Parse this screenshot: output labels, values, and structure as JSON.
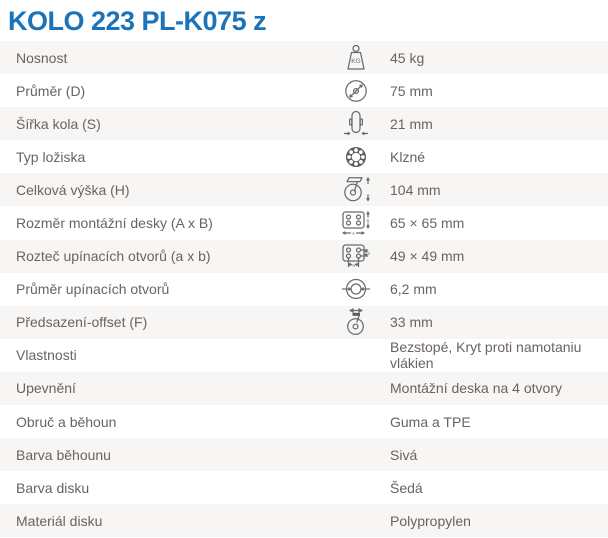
{
  "page": {
    "title": "KOLO 223 PL-K075 z"
  },
  "colors": {
    "title_blue": "#1b73b9",
    "row_shaded": "#f7f6f5",
    "row_white": "#ffffff",
    "text_gray": "#6a635e",
    "icon_gray": "#6b6b6b"
  },
  "table": {
    "rows": [
      {
        "label": "Nosnost",
        "icon": "weight-kg-icon",
        "value": "45 kg"
      },
      {
        "label": "Průměr (D)",
        "icon": "diameter-icon",
        "value": "75 mm"
      },
      {
        "label": "Šířka kola (S)",
        "icon": "wheel-width-icon",
        "value": "21 mm"
      },
      {
        "label": "Typ ložiska",
        "icon": "bearing-icon",
        "value": "Klzné"
      },
      {
        "label": "Celková výška (H)",
        "icon": "caster-height-icon",
        "value": "104 mm"
      },
      {
        "label": "Rozměr montážní desky (A x B)",
        "icon": "mounting-plate-icon",
        "value": "65 × 65 mm"
      },
      {
        "label": "Rozteč upínacích otvorů (a x b)",
        "icon": "hole-spacing-icon",
        "value": "49 × 49 mm"
      },
      {
        "label": "Průměr upínacích otvorů",
        "icon": "hole-diameter-icon",
        "value": "6,2 mm"
      },
      {
        "label": "Předsazení-offset (F)",
        "icon": "caster-offset-icon",
        "value": "33 mm"
      },
      {
        "label": "Vlastnosti",
        "icon": null,
        "value": "Bezstopé, Kryt proti namotaniu vlákien"
      },
      {
        "label": "Upevnění",
        "icon": null,
        "value": "Montážní deska na 4 otvory"
      },
      {
        "label": "Obruč a běhoun",
        "icon": null,
        "value": "Guma a TPE"
      },
      {
        "label": "Barva běhounu",
        "icon": null,
        "value": "Sivá"
      },
      {
        "label": "Barva disku",
        "icon": null,
        "value": "Šedá"
      },
      {
        "label": "Materiál disku",
        "icon": null,
        "value": "Polypropylen"
      }
    ]
  }
}
